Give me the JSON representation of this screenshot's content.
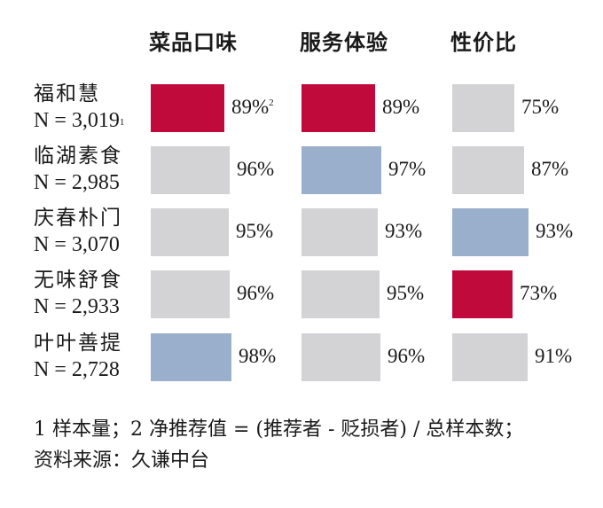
{
  "chart_data": {
    "type": "table",
    "columns": [
      "菜品口味",
      "服务体验",
      "性价比"
    ],
    "rows": [
      {
        "name": "福和慧",
        "n": "N = 3,019",
        "n_sup": "1",
        "values": [
          89,
          89,
          75
        ],
        "labels": [
          "89%",
          "89%",
          "75%"
        ],
        "label_sups": [
          "2",
          "",
          ""
        ],
        "highlight": [
          "top",
          "top",
          "none"
        ]
      },
      {
        "name": "临湖素食",
        "n": "N = 2,985",
        "values": [
          96,
          97,
          87
        ],
        "labels": [
          "96%",
          "97%",
          "87%"
        ],
        "label_sups": [
          "",
          "",
          ""
        ],
        "highlight": [
          "none",
          "mid",
          "none"
        ]
      },
      {
        "name": "庆春朴门",
        "n": "N = 3,070",
        "values": [
          95,
          93,
          93
        ],
        "labels": [
          "95%",
          "93%",
          "93%"
        ],
        "label_sups": [
          "",
          "",
          ""
        ],
        "highlight": [
          "none",
          "none",
          "mid"
        ]
      },
      {
        "name": "无味舒食",
        "n": "N = 2,933",
        "values": [
          96,
          95,
          73
        ],
        "labels": [
          "96%",
          "95%",
          "73%"
        ],
        "label_sups": [
          "",
          "",
          ""
        ],
        "highlight": [
          "none",
          "none",
          "top"
        ]
      },
      {
        "name": "叶叶善提",
        "n": "N = 2,728",
        "values": [
          98,
          96,
          91
        ],
        "labels": [
          "98%",
          "96%",
          "91%"
        ],
        "label_sups": [
          "",
          "",
          ""
        ],
        "highlight": [
          "mid",
          "none",
          "none"
        ]
      }
    ],
    "colors": {
      "top": "#c10a3c",
      "mid": "#9aafcc",
      "none": "#d3d3d5"
    }
  },
  "footer": {
    "line1": "1 样本量；2 净推荐值 = (推荐者 - 贬损者) / 总样本数；",
    "line2": "资料来源：久谦中台"
  }
}
